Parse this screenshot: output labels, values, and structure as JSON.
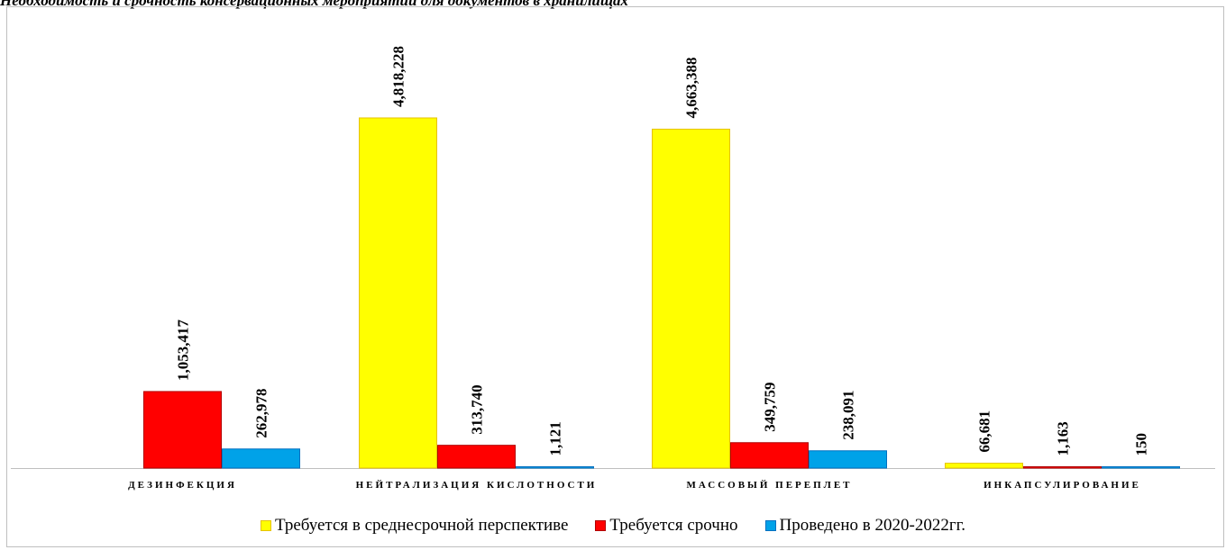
{
  "title": "Необходимость и срочность консервационных мероприятий для документов в хранилищах",
  "chart_data": {
    "type": "bar",
    "categories": [
      "ДЕЗИНФЕКЦИЯ",
      "НЕЙТРАЛИЗАЦИЯ КИСЛОТНОСТИ",
      "МАССОВЫЙ ПЕРЕПЛЕТ",
      "ИНКАПСУЛИРОВАНИЕ"
    ],
    "series": [
      {
        "name": "Требуется в среднесрочной перспективе",
        "color": "#ffff00",
        "border": "#e6c200",
        "values": [
          null,
          4818228,
          4663388,
          66681
        ],
        "labels": [
          "",
          "4,818,228",
          "4,663,388",
          "66,681"
        ]
      },
      {
        "name": "Требуется срочно",
        "color": "#ff0000",
        "border": "#b00000",
        "values": [
          1053417,
          313740,
          349759,
          1163
        ],
        "labels": [
          "1,053,417",
          "313,740",
          "349,759",
          "1,163"
        ]
      },
      {
        "name": "Проведено в 2020-2022гг.",
        "color": "#00a2e8",
        "border": "#0070c0",
        "values": [
          262978,
          1121,
          238091,
          150
        ],
        "labels": [
          "262,978",
          "1,121",
          "238,091",
          "150"
        ]
      }
    ],
    "ylim": [
      0,
      5000000
    ],
    "grid": false,
    "legend_position": "bottom"
  }
}
